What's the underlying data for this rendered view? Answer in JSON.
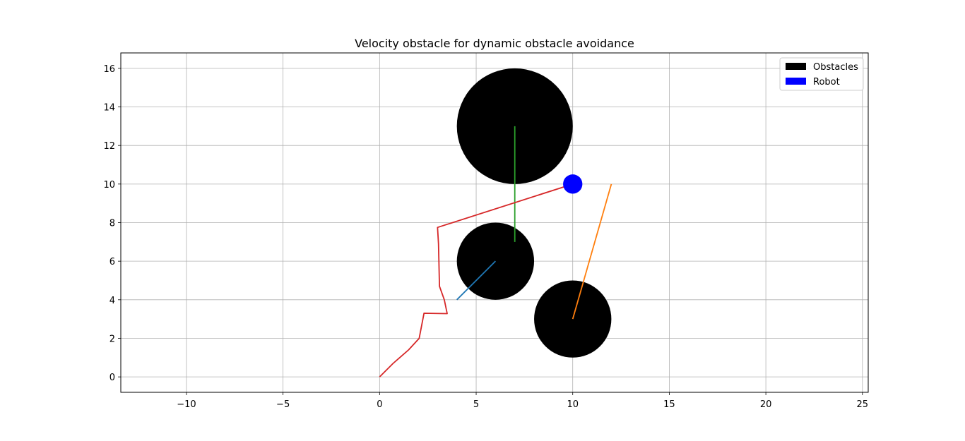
{
  "chart_data": {
    "type": "scatter",
    "title": "Velocity obstacle for dynamic obstacle avoidance",
    "xlabel": "",
    "ylabel": "",
    "xlim": [
      -13.4,
      25.3
    ],
    "ylim": [
      -0.8,
      16.8
    ],
    "x_ticks": [
      -10,
      -5,
      0,
      5,
      10,
      15,
      20,
      25
    ],
    "x_tick_labels": [
      "−10",
      "−5",
      "0",
      "5",
      "10",
      "15",
      "20",
      "25"
    ],
    "y_ticks": [
      0,
      2,
      4,
      6,
      8,
      10,
      12,
      14,
      16
    ],
    "y_tick_labels": [
      "0",
      "2",
      "4",
      "6",
      "8",
      "10",
      "12",
      "14",
      "16"
    ],
    "grid": true,
    "legend_position": "top-right",
    "legend": [
      {
        "label": "Obstacles",
        "color": "#000000"
      },
      {
        "label": "Robot",
        "color": "#0000ff"
      }
    ],
    "obstacles": [
      {
        "cx": 7,
        "cy": 13,
        "r": 3
      },
      {
        "cx": 6,
        "cy": 6,
        "r": 2
      },
      {
        "cx": 10,
        "cy": 3,
        "r": 2
      }
    ],
    "robot": {
      "cx": 10,
      "cy": 10,
      "r": 0.5
    },
    "lines": [
      {
        "color": "#1f77b4",
        "points": [
          [
            4,
            4
          ],
          [
            6,
            6
          ]
        ]
      },
      {
        "color": "#ff7f0e",
        "points": [
          [
            10,
            3
          ],
          [
            12,
            10
          ]
        ]
      },
      {
        "color": "#2ca02c",
        "points": [
          [
            7,
            7
          ],
          [
            7,
            13
          ]
        ]
      },
      {
        "color": "#d62728",
        "points": [
          [
            0,
            0
          ],
          [
            0.7,
            0.7
          ],
          [
            1.5,
            1.4
          ],
          [
            2.05,
            2.0
          ],
          [
            2.3,
            3.3
          ],
          [
            3.5,
            3.28
          ],
          [
            3.35,
            4.0
          ],
          [
            3.1,
            4.7
          ],
          [
            3.05,
            6.9
          ],
          [
            3.0,
            7.75
          ],
          [
            10.0,
            10.0
          ]
        ]
      }
    ]
  }
}
